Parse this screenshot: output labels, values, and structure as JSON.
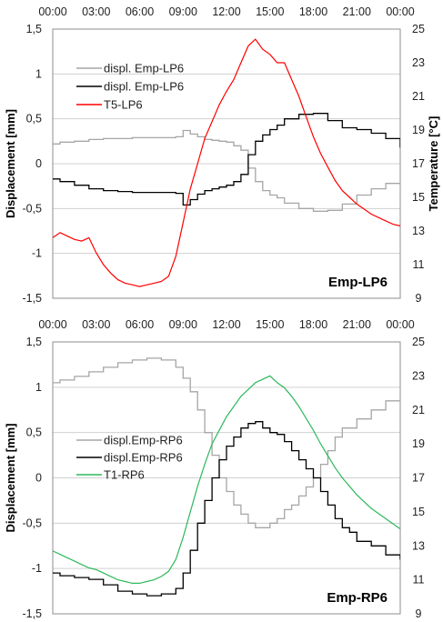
{
  "chart_data": [
    {
      "type": "line",
      "panel_label": "Emp-LP6",
      "x_ticks": [
        "00:00",
        "03:00",
        "06:00",
        "09:00",
        "12:00",
        "15:00",
        "18:00",
        "21:00",
        "00:00"
      ],
      "x_range_hours": [
        0,
        24
      ],
      "ylabel": "Displacement [mm]",
      "ylim": [
        -1.5,
        1.5
      ],
      "y_ticks": [
        "-1,5",
        "-1",
        "-0,5",
        "0",
        "0,5",
        "1",
        "1,5"
      ],
      "y_tick_values": [
        -1.5,
        -1,
        -0.5,
        0,
        0.5,
        1,
        1.5
      ],
      "y2label": "Temperature [°C]",
      "y2lim": [
        9,
        25
      ],
      "y2_ticks": [
        "9",
        "11",
        "13",
        "15",
        "17",
        "19",
        "21",
        "23",
        "25"
      ],
      "y2_tick_values": [
        9,
        11,
        13,
        15,
        17,
        19,
        21,
        23,
        25
      ],
      "grid": "horizontal",
      "legend_position": "upper-left",
      "series": [
        {
          "name": "displ. Emp-LP6",
          "axis": "left",
          "color": "#a6a6a6",
          "step": true,
          "x": [
            0,
            0.5,
            1.5,
            2.5,
            3.5,
            4.5,
            5.5,
            6.5,
            7.5,
            8.5,
            9.0,
            9.5,
            10.0,
            10.5,
            11.0,
            11.5,
            12.0,
            12.5,
            13.0,
            13.5,
            14.0,
            14.5,
            15.0,
            15.5,
            16.0,
            17.0,
            18.0,
            19.0,
            20.0,
            21.0,
            22.0,
            23.0,
            24.0
          ],
          "y": [
            0.22,
            0.24,
            0.25,
            0.27,
            0.28,
            0.28,
            0.29,
            0.29,
            0.29,
            0.3,
            0.37,
            0.33,
            0.3,
            0.27,
            0.26,
            0.25,
            0.24,
            0.2,
            0.15,
            -0.05,
            -0.2,
            -0.3,
            -0.35,
            -0.38,
            -0.44,
            -0.5,
            -0.53,
            -0.52,
            -0.45,
            -0.35,
            -0.28,
            -0.22,
            -0.15
          ]
        },
        {
          "name": "displ. Emp-LP6",
          "axis": "left",
          "color": "#000000",
          "step": true,
          "x": [
            0,
            0.5,
            1.5,
            2.5,
            3.5,
            4.5,
            5.5,
            6.5,
            7.5,
            8.5,
            9.0,
            9.5,
            10.0,
            10.5,
            11.0,
            11.5,
            12.0,
            12.5,
            13.0,
            13.5,
            14.0,
            14.5,
            15.0,
            15.5,
            16.0,
            17.0,
            18.0,
            19.0,
            20.0,
            21.0,
            22.0,
            23.0,
            24.0
          ],
          "y": [
            -0.17,
            -0.2,
            -0.24,
            -0.28,
            -0.3,
            -0.31,
            -0.32,
            -0.32,
            -0.32,
            -0.33,
            -0.46,
            -0.4,
            -0.34,
            -0.3,
            -0.28,
            -0.26,
            -0.24,
            -0.2,
            -0.12,
            0.1,
            0.25,
            0.32,
            0.38,
            0.43,
            0.5,
            0.55,
            0.56,
            0.48,
            0.4,
            0.38,
            0.34,
            0.28,
            0.18
          ]
        },
        {
          "name": "T5-LP6",
          "axis": "right",
          "color": "#ff0000",
          "step": false,
          "x": [
            0,
            0.5,
            1.0,
            1.5,
            2.0,
            2.5,
            3.0,
            3.5,
            4.0,
            4.5,
            5.0,
            5.5,
            6.0,
            6.5,
            7.0,
            7.5,
            8.0,
            8.5,
            9.0,
            9.5,
            10.0,
            10.5,
            11.0,
            11.5,
            12.0,
            12.5,
            13.0,
            13.5,
            14.0,
            14.5,
            15.0,
            15.5,
            16.0,
            16.5,
            17.0,
            17.5,
            18.0,
            18.5,
            19.0,
            19.5,
            20.0,
            20.5,
            21.0,
            21.5,
            22.0,
            22.5,
            23.0,
            23.5,
            24.0
          ],
          "y": [
            12.6,
            12.9,
            12.7,
            12.5,
            12.4,
            12.6,
            11.7,
            11.0,
            10.5,
            10.1,
            9.9,
            9.8,
            9.7,
            9.8,
            9.9,
            10.0,
            10.3,
            11.5,
            13.5,
            15.5,
            17.0,
            18.5,
            19.5,
            20.5,
            21.3,
            22.0,
            23.0,
            24.0,
            24.4,
            23.8,
            23.5,
            23.0,
            23.0,
            22.0,
            21.0,
            19.8,
            18.6,
            17.6,
            16.8,
            16.0,
            15.4,
            15.0,
            14.6,
            14.3,
            14.0,
            13.8,
            13.6,
            13.4,
            13.3
          ]
        }
      ]
    },
    {
      "type": "line",
      "panel_label": "Emp-RP6",
      "x_ticks": [
        "00:00",
        "03:00",
        "06:00",
        "09:00",
        "12:00",
        "15:00",
        "18:00",
        "21:00",
        "00:00"
      ],
      "x_range_hours": [
        0,
        24
      ],
      "ylabel": "Displacement [mm]",
      "ylim": [
        -1.5,
        1.5
      ],
      "y_ticks": [
        "-1,5",
        "-1",
        "-0,5",
        "0",
        "0,5",
        "1",
        "1,5"
      ],
      "y_tick_values": [
        -1.5,
        -1,
        -0.5,
        0,
        0.5,
        1,
        1.5
      ],
      "y2label": "",
      "y2lim": [
        9,
        25
      ],
      "y2_ticks": [
        "9",
        "11",
        "13",
        "15",
        "17",
        "19",
        "21",
        "23",
        "25"
      ],
      "y2_tick_values": [
        9,
        11,
        13,
        15,
        17,
        19,
        21,
        23,
        25
      ],
      "grid": "horizontal",
      "legend_position": "center-left",
      "series": [
        {
          "name": "displ.Emp-RP6",
          "axis": "left",
          "color": "#a6a6a6",
          "step": true,
          "x": [
            0,
            0.5,
            1.5,
            2.5,
            3.5,
            4.5,
            5.5,
            6.5,
            7.5,
            8.5,
            9.0,
            9.5,
            10.0,
            10.5,
            11.0,
            11.5,
            12.0,
            12.5,
            13.0,
            13.5,
            14.0,
            14.5,
            15.0,
            15.5,
            16.0,
            16.5,
            17.0,
            17.5,
            18.0,
            18.5,
            19.0,
            19.5,
            20.0,
            21.0,
            22.0,
            23.0,
            24.0
          ],
          "y": [
            1.05,
            1.08,
            1.12,
            1.17,
            1.22,
            1.27,
            1.3,
            1.32,
            1.3,
            1.22,
            1.1,
            0.95,
            0.75,
            0.5,
            0.25,
            0.0,
            -0.15,
            -0.3,
            -0.4,
            -0.5,
            -0.55,
            -0.55,
            -0.5,
            -0.45,
            -0.35,
            -0.3,
            -0.2,
            -0.1,
            0.0,
            0.15,
            0.3,
            0.45,
            0.55,
            0.65,
            0.75,
            0.85,
            0.9
          ]
        },
        {
          "name": "displ.Emp-RP6",
          "axis": "left",
          "color": "#000000",
          "step": true,
          "x": [
            0,
            0.5,
            1.5,
            2.5,
            3.5,
            4.5,
            5.5,
            6.5,
            7.5,
            8.5,
            9.0,
            9.5,
            10.0,
            10.5,
            11.0,
            11.5,
            12.0,
            12.5,
            13.0,
            13.5,
            14.0,
            14.5,
            15.0,
            15.5,
            16.0,
            16.5,
            17.0,
            17.5,
            18.0,
            18.5,
            19.0,
            19.5,
            20.0,
            20.5,
            21.0,
            22.0,
            23.0,
            24.0
          ],
          "y": [
            -1.05,
            -1.08,
            -1.1,
            -1.12,
            -1.18,
            -1.25,
            -1.28,
            -1.3,
            -1.28,
            -1.22,
            -1.05,
            -0.8,
            -0.5,
            -0.25,
            0.0,
            0.2,
            0.35,
            0.45,
            0.55,
            0.6,
            0.62,
            0.55,
            0.5,
            0.48,
            0.4,
            0.3,
            0.2,
            0.1,
            0.0,
            -0.15,
            -0.3,
            -0.45,
            -0.55,
            -0.6,
            -0.7,
            -0.75,
            -0.85,
            -0.9
          ]
        },
        {
          "name": "T1-RP6",
          "axis": "right",
          "color": "#2eb85c",
          "step": false,
          "x": [
            0,
            0.5,
            1.0,
            1.5,
            2.0,
            2.5,
            3.0,
            3.5,
            4.0,
            4.5,
            5.0,
            5.5,
            6.0,
            6.5,
            7.0,
            7.5,
            8.0,
            8.5,
            9.0,
            9.5,
            10.0,
            10.5,
            11.0,
            11.5,
            12.0,
            12.5,
            13.0,
            13.5,
            14.0,
            14.5,
            15.0,
            15.5,
            16.0,
            16.5,
            17.0,
            17.5,
            18.0,
            18.5,
            19.0,
            19.5,
            20.0,
            20.5,
            21.0,
            21.5,
            22.0,
            22.5,
            23.0,
            23.5,
            24.0
          ],
          "y": [
            12.7,
            12.5,
            12.3,
            12.1,
            11.9,
            11.7,
            11.6,
            11.4,
            11.2,
            11.0,
            10.9,
            10.8,
            10.8,
            10.9,
            11.0,
            11.2,
            11.5,
            12.2,
            13.5,
            15.0,
            16.5,
            17.8,
            19.0,
            19.8,
            20.6,
            21.2,
            21.8,
            22.2,
            22.6,
            22.8,
            23.0,
            22.6,
            22.3,
            21.8,
            21.2,
            20.5,
            19.8,
            19.0,
            18.3,
            17.6,
            17.0,
            16.5,
            16.0,
            15.6,
            15.2,
            14.9,
            14.6,
            14.3,
            14.0
          ]
        }
      ]
    }
  ]
}
